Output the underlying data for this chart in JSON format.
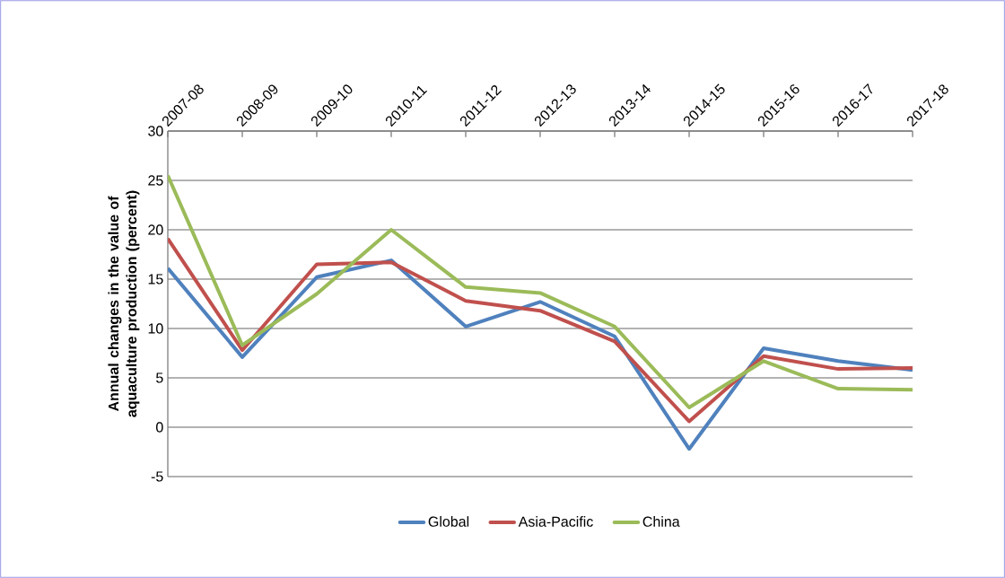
{
  "chart_data": {
    "type": "line",
    "ylabel": "Annual changes in the value of aquaculture production (percent)",
    "categories": [
      "2007-08",
      "2008-09",
      "2009-10",
      "2010-11",
      "2011-12",
      "2012-13",
      "2013-14",
      "2014-15",
      "2015-16",
      "2016-17",
      "2017-18"
    ],
    "series": [
      {
        "name": "Global",
        "color": "#4f81bd",
        "values": [
          16.1,
          7.1,
          15.2,
          16.9,
          10.2,
          12.7,
          9.2,
          -2.2,
          8.0,
          6.7,
          5.8
        ]
      },
      {
        "name": "Asia-Pacific",
        "color": "#c0504d",
        "values": [
          19.1,
          7.8,
          16.5,
          16.7,
          12.8,
          11.8,
          8.7,
          0.6,
          7.2,
          5.9,
          6.0
        ]
      },
      {
        "name": "China",
        "color": "#9bbb59",
        "values": [
          25.5,
          8.3,
          13.5,
          20.0,
          14.2,
          13.6,
          10.2,
          2.0,
          6.7,
          3.9,
          3.8
        ]
      }
    ],
    "ylim": [
      -5,
      30
    ],
    "yticks": [
      -5,
      0,
      5,
      10,
      15,
      20,
      25,
      30
    ],
    "grid": "y",
    "legend": "bottom"
  }
}
